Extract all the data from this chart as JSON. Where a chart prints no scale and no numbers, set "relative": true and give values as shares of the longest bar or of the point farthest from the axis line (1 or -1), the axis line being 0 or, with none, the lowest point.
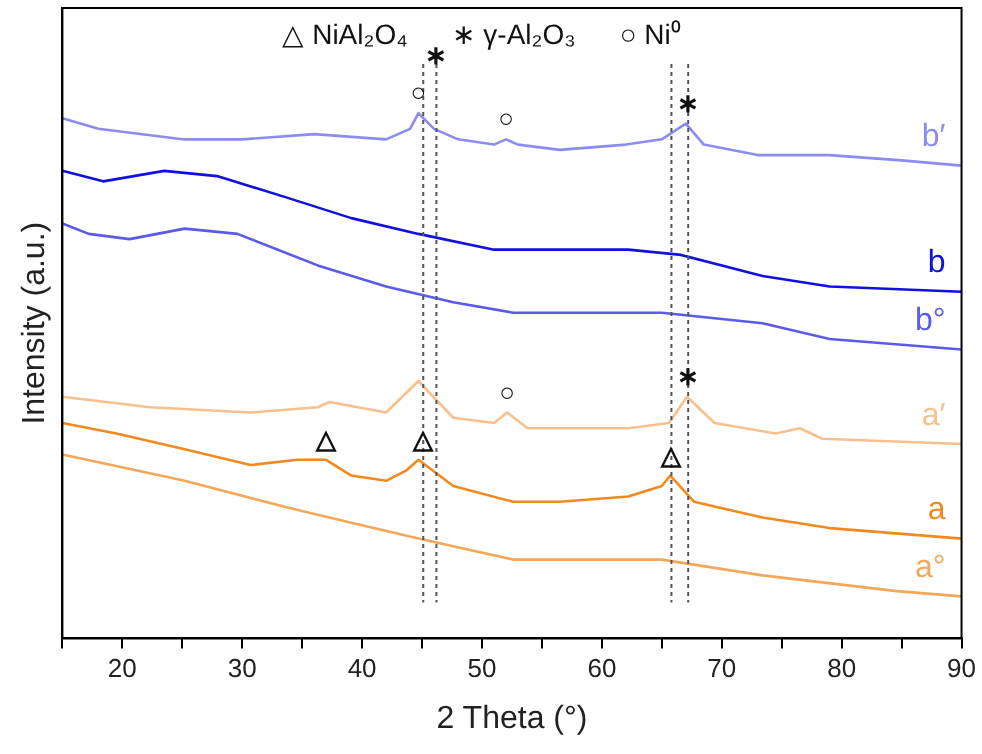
{
  "chart_data": {
    "type": "line",
    "relative": true,
    "xlabel": "2 Theta (°)",
    "ylabel": "Intensity (a.u.)",
    "xlim": [
      15,
      90
    ],
    "xticks": [
      {
        "value": 15,
        "label": null
      },
      20,
      {
        "value": 25,
        "label": null
      },
      30,
      {
        "value": 35,
        "label": null
      },
      40,
      {
        "value": 45,
        "label": null
      },
      50,
      {
        "value": 55,
        "label": null
      },
      60,
      {
        "value": 65,
        "label": null
      },
      70,
      {
        "value": 75,
        "label": null
      },
      80,
      {
        "value": 85,
        "label": null
      },
      90
    ],
    "grid": false,
    "legend": false,
    "marker": "none",
    "line_style": "solid",
    "series": [
      {
        "name": "b′",
        "color": "#8c8cf0",
        "x": [
          15,
          18,
          25,
          30,
          36,
          42,
          44,
          44.7,
          46,
          48,
          51,
          52,
          53,
          56.5,
          62,
          65,
          67,
          68.5,
          73,
          79,
          85,
          90
        ],
        "values": [
          0.99,
          0.97,
          0.95,
          0.95,
          0.96,
          0.95,
          0.97,
          1.0,
          0.97,
          0.95,
          0.94,
          0.95,
          0.94,
          0.93,
          0.94,
          0.95,
          0.98,
          0.94,
          0.92,
          0.92,
          0.91,
          0.9
        ]
      },
      {
        "name": "b",
        "color": "#1010e0",
        "x": [
          15,
          18.4,
          23.5,
          27.9,
          33.6,
          39.1,
          44.7,
          51,
          52.6,
          62.2,
          66.6,
          73.4,
          79,
          90
        ],
        "values": [
          0.89,
          0.87,
          0.89,
          0.88,
          0.84,
          0.8,
          0.77,
          0.74,
          0.74,
          0.74,
          0.73,
          0.69,
          0.67,
          0.66
        ]
      },
      {
        "name": "b°",
        "color": "#5a5aec",
        "x": [
          15,
          17.2,
          20.6,
          25.2,
          29.6,
          36.3,
          42,
          47.6,
          52.6,
          65,
          73.4,
          79,
          90
        ],
        "values": [
          0.79,
          0.77,
          0.76,
          0.78,
          0.77,
          0.71,
          0.67,
          0.64,
          0.62,
          0.62,
          0.6,
          0.57,
          0.55
        ]
      },
      {
        "name": "a′",
        "color": "#f7c08c",
        "x": [
          15,
          22.3,
          30.7,
          36.3,
          37.3,
          42,
          44.7,
          47.6,
          51,
          52.1,
          53.8,
          62.2,
          65.6,
          67.1,
          69.4,
          74.5,
          76.5,
          78.4,
          90
        ],
        "values": [
          0.46,
          0.44,
          0.43,
          0.44,
          0.45,
          0.43,
          0.49,
          0.42,
          0.41,
          0.43,
          0.4,
          0.4,
          0.41,
          0.46,
          0.41,
          0.39,
          0.4,
          0.38,
          0.37
        ]
      },
      {
        "name": "a",
        "color": "#f08a1e",
        "x": [
          15,
          19.5,
          25.2,
          30.7,
          34.6,
          37,
          39.1,
          42,
          43.7,
          44.7,
          47.6,
          52.6,
          56.5,
          62.2,
          65,
          65.7,
          67.7,
          73.4,
          79,
          90
        ],
        "values": [
          0.41,
          0.39,
          0.36,
          0.33,
          0.34,
          0.34,
          0.31,
          0.3,
          0.32,
          0.34,
          0.29,
          0.26,
          0.26,
          0.27,
          0.29,
          0.31,
          0.26,
          0.23,
          0.21,
          0.19
        ]
      },
      {
        "name": "a°",
        "color": "#f2a75a",
        "x": [
          15,
          25.2,
          33.6,
          39.1,
          44.7,
          52.6,
          65,
          73.4,
          84.6,
          90
        ],
        "values": [
          0.35,
          0.3,
          0.25,
          0.22,
          0.19,
          0.15,
          0.15,
          0.12,
          0.09,
          0.08
        ]
      }
    ],
    "ref_lines": [
      {
        "axis": "x",
        "value": 45.1,
        "color": "#555555",
        "line_style": "dotted"
      },
      {
        "axis": "x",
        "value": 46.2,
        "color": "#555555",
        "line_style": "dotted"
      },
      {
        "axis": "x",
        "value": 65.8,
        "color": "#555555",
        "line_style": "dotted"
      },
      {
        "axis": "x",
        "value": 67.2,
        "color": "#555555",
        "line_style": "dotted"
      }
    ],
    "annotations": [
      "△ NiAl₂O₄",
      "∗ γ-Al₂O₃",
      "○ Ni⁰",
      {
        "text": "○",
        "x": 44.7,
        "y": 1.0
      },
      {
        "text": "○",
        "x": 52,
        "y": 0.95
      },
      {
        "text": "○",
        "x": 52.1,
        "y": 0.43
      },
      {
        "text": "∗",
        "x": 46.2,
        "y": 1.07
      },
      {
        "text": "∗",
        "x": 67.2,
        "y": 0.98
      },
      {
        "text": "∗",
        "x": 67.2,
        "y": 0.46
      },
      {
        "text": "△",
        "x": 37,
        "y": 0.34
      },
      {
        "text": "△",
        "x": 45.1,
        "y": 0.34
      },
      {
        "text": "△",
        "x": 65.8,
        "y": 0.31
      }
    ]
  }
}
